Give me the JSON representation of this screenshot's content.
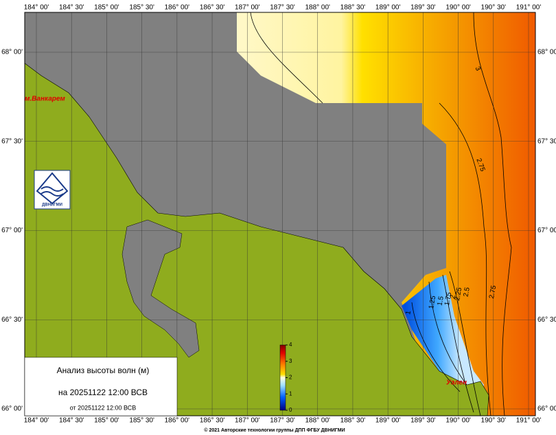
{
  "map": {
    "lon_labels": [
      "184° 00'",
      "184° 30'",
      "185° 00'",
      "185° 30'",
      "186° 00'",
      "186° 30'",
      "187° 00'",
      "187° 30'",
      "188° 00'",
      "188° 30'",
      "189° 00'",
      "189° 30'",
      "190° 00'",
      "190° 30'",
      "191° 00'"
    ],
    "lat_labels": [
      "68° 00'",
      "67° 30'",
      "67° 00'",
      "66° 30'",
      "66° 00'"
    ],
    "places": [
      "м.Ванкарем",
      "Уэлен"
    ],
    "logo_text": "ДВНИГМИ",
    "contour_labels": [
      3,
      2.75,
      2.75,
      2.5,
      2.25,
      2,
      1.75,
      1.5,
      1.25,
      1
    ],
    "copyright": "© 2021 Авторские технологии группы ДПП ФГБУ ДВНИГМИ"
  },
  "legend": {
    "title": "Анализ высоты волн (м)",
    "valid": "на 20251122 12:00 ВСВ",
    "issued": "от 20251122 12:00 ВСВ"
  },
  "colorbar": {
    "range": [
      0,
      4
    ],
    "ticks": [
      0,
      1,
      2,
      3,
      4
    ]
  }
}
